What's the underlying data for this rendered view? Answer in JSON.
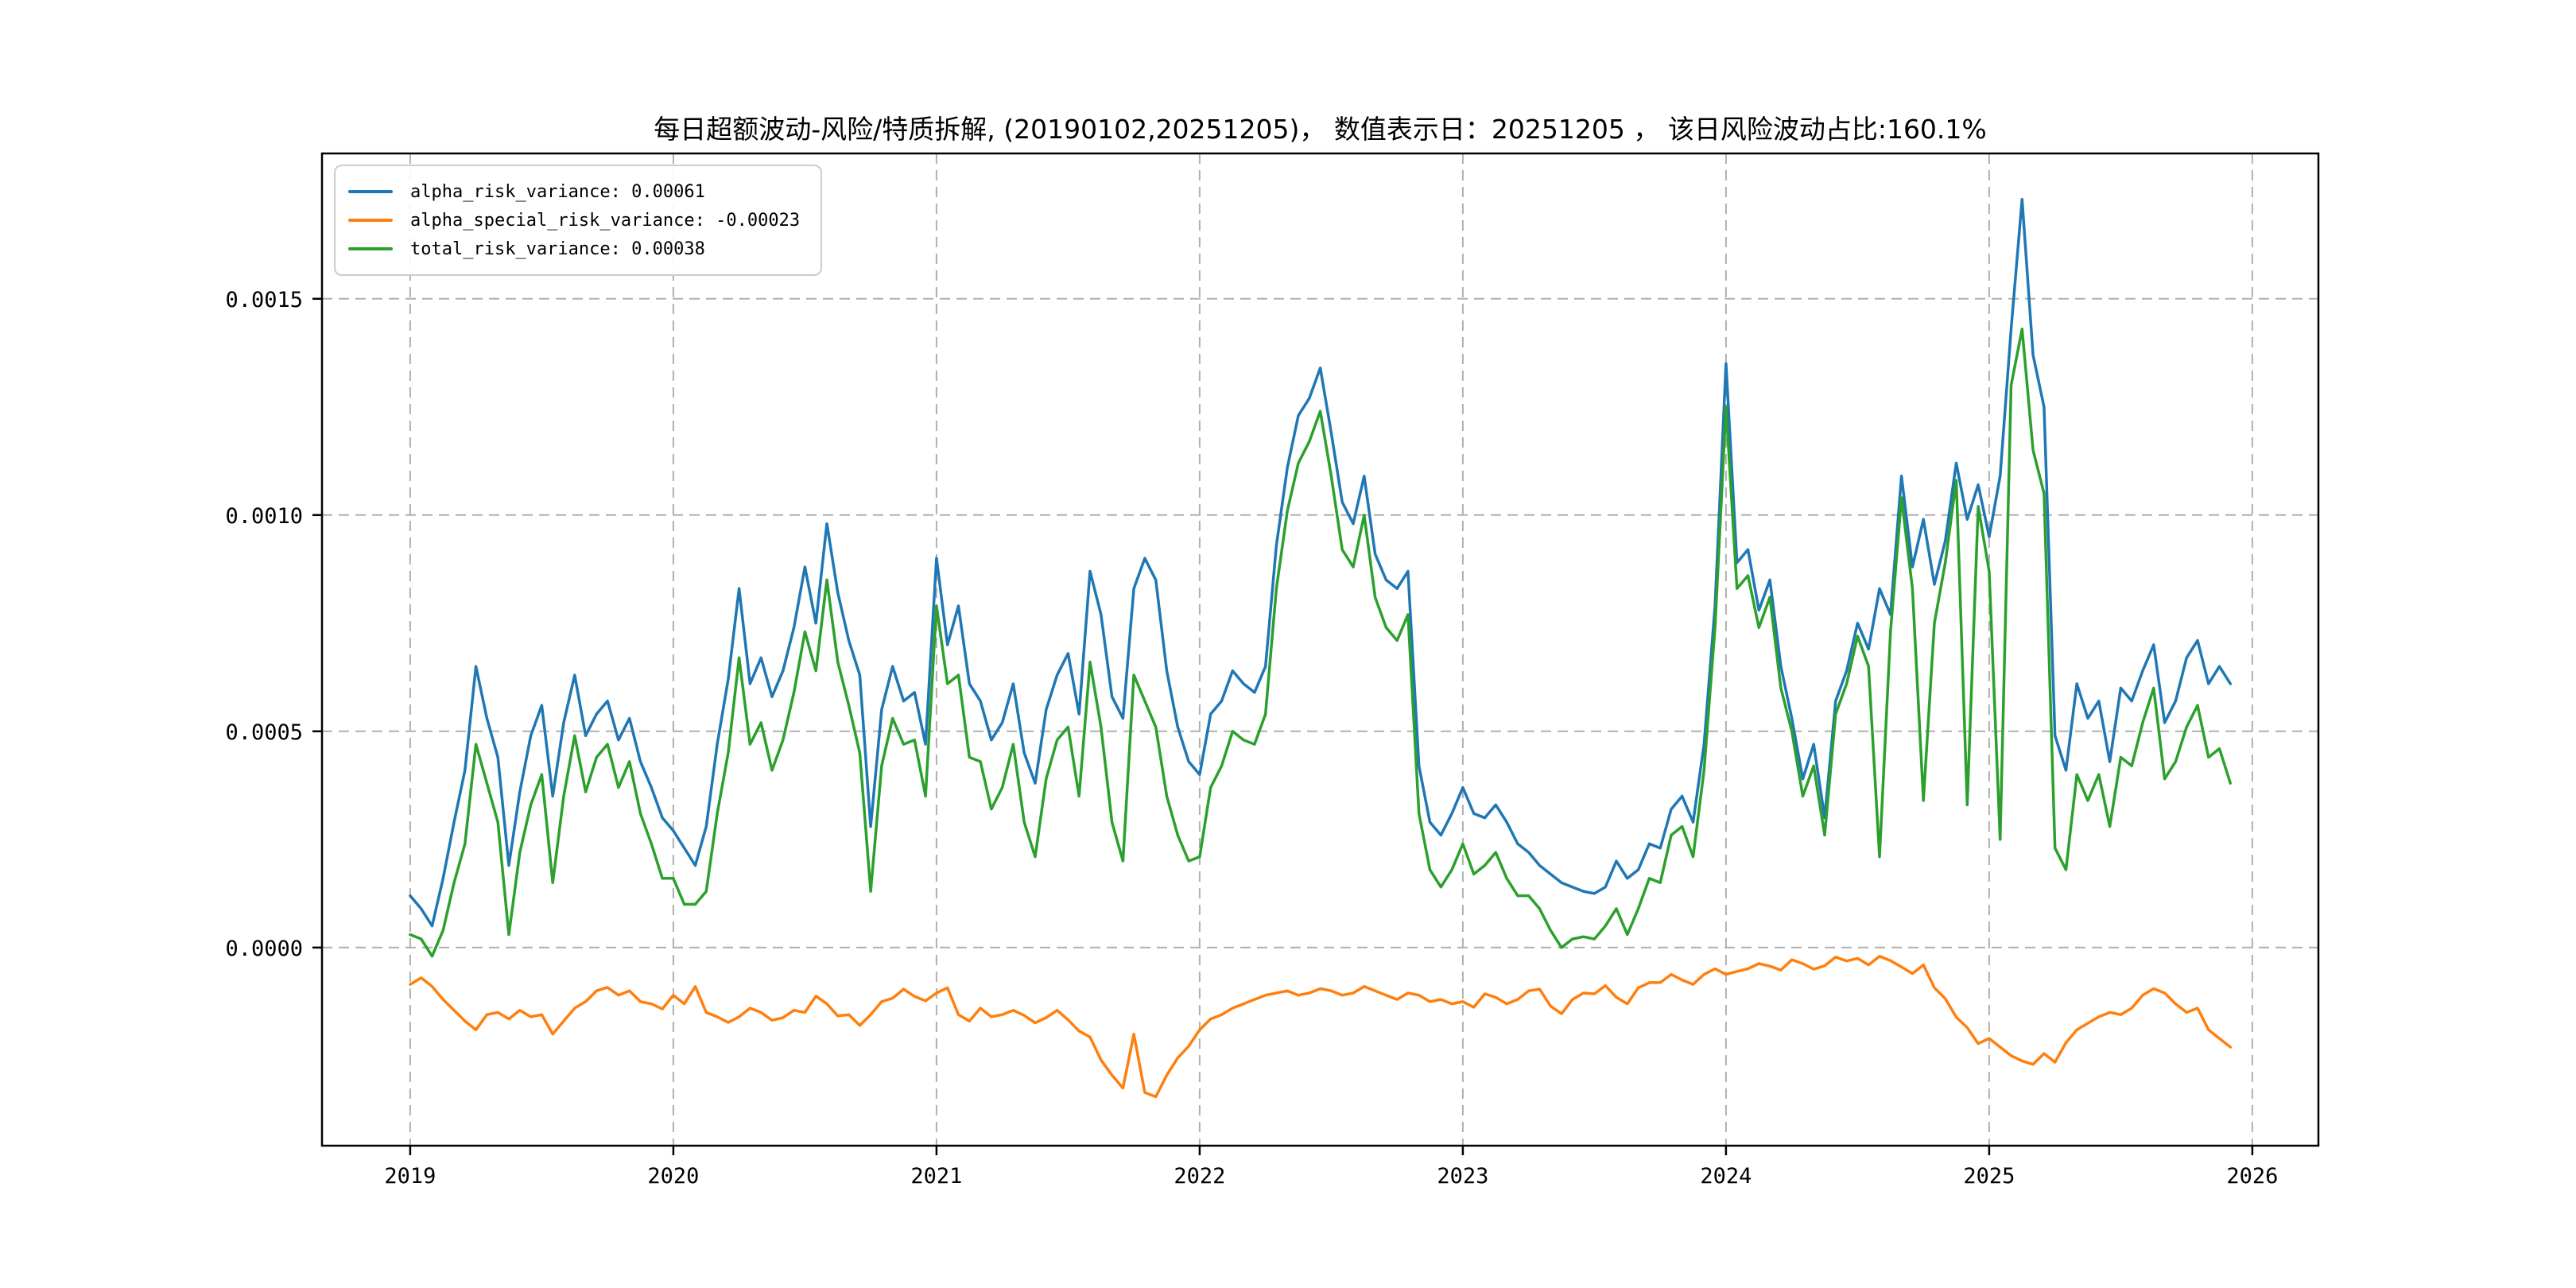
{
  "title": "每日超额波动-风险/特质拆解, (20190102,20251205)， 数值表示日：20251205 ， 该日风险波动占比:160.1%",
  "legend": {
    "items": [
      {
        "label": "alpha_risk_variance: 0.00061",
        "color": "#1f77b4"
      },
      {
        "label": "alpha_special_risk_variance: -0.00023",
        "color": "#ff7f0e"
      },
      {
        "label": "total_risk_variance: 0.00038",
        "color": "#2ca02c"
      }
    ]
  },
  "chart_data": {
    "type": "line",
    "title": "每日超额波动-风险/特质拆解, (20190102,20251205)， 数值表示日：20251205 ， 该日风险波动占比:160.1%",
    "date_range": [
      "20190102",
      "20251205"
    ],
    "value_date": "20251205",
    "risk_ratio_pct": 160.1,
    "legend_position": "upper-left",
    "grid": {
      "visible": true,
      "style": "dashed",
      "color": "#b0b0b0"
    },
    "x_axis": {
      "ticks": [
        2019,
        2020,
        2021,
        2022,
        2023,
        2024,
        2025,
        2026
      ],
      "tick_labels": [
        "2019",
        "2020",
        "2021",
        "2022",
        "2023",
        "2024",
        "2025",
        "2026"
      ],
      "lim": [
        2018.665,
        2026.251
      ]
    },
    "y_axis": {
      "ticks": [
        0.0,
        0.0005,
        0.001,
        0.0015
      ],
      "tick_labels": [
        "0.0000",
        "0.0005",
        "0.0010",
        "0.0015"
      ],
      "lim": [
        -0.000458,
        0.001836
      ]
    },
    "x_start": 2019.0,
    "x_step": 0.0416667,
    "value_unit": 0.0001,
    "series": [
      {
        "name": "alpha_risk_variance",
        "color": "#1f77b4",
        "last_value": 0.00061,
        "values": [
          1.2,
          0.9,
          0.5,
          1.6,
          2.9,
          4.1,
          6.5,
          5.3,
          4.4,
          1.9,
          3.6,
          4.9,
          5.6,
          3.5,
          5.2,
          6.3,
          4.9,
          5.4,
          5.7,
          4.8,
          5.3,
          4.3,
          3.7,
          3.0,
          2.7,
          2.3,
          1.9,
          2.8,
          4.7,
          6.2,
          8.3,
          6.1,
          6.7,
          5.8,
          6.4,
          7.4,
          8.8,
          7.5,
          9.8,
          8.2,
          7.1,
          6.3,
          2.8,
          5.5,
          6.5,
          5.7,
          5.9,
          4.7,
          9.0,
          7.0,
          7.9,
          6.1,
          5.7,
          4.8,
          5.2,
          6.1,
          4.5,
          3.8,
          5.5,
          6.3,
          6.8,
          5.4,
          8.7,
          7.7,
          5.8,
          5.3,
          8.3,
          9.0,
          8.5,
          6.4,
          5.1,
          4.3,
          4.0,
          5.4,
          5.7,
          6.4,
          6.1,
          5.9,
          6.5,
          9.3,
          11.1,
          12.3,
          12.7,
          13.4,
          11.9,
          10.3,
          9.8,
          10.9,
          9.1,
          8.5,
          8.3,
          8.7,
          4.2,
          2.9,
          2.6,
          3.1,
          3.7,
          3.1,
          3.0,
          3.3,
          2.9,
          2.4,
          2.2,
          1.9,
          1.7,
          1.5,
          1.4,
          1.3,
          1.25,
          1.4,
          2.0,
          1.6,
          1.8,
          2.4,
          2.3,
          3.2,
          3.5,
          2.9,
          4.7,
          7.9,
          13.5,
          8.9,
          9.2,
          7.8,
          8.5,
          6.5,
          5.3,
          3.9,
          4.7,
          3.0,
          5.7,
          6.4,
          7.5,
          6.9,
          8.3,
          7.7,
          10.9,
          8.8,
          9.9,
          8.4,
          9.4,
          11.2,
          9.9,
          10.7,
          9.5,
          10.9,
          14.3,
          17.3,
          13.7,
          12.5,
          4.9,
          4.1,
          6.1,
          5.3,
          5.7,
          4.3,
          6.0,
          5.7,
          6.4,
          7.0,
          5.2,
          5.7,
          6.7,
          7.1,
          6.1,
          6.5,
          6.1
        ]
      },
      {
        "name": "alpha_special_risk_variance",
        "color": "#ff7f0e",
        "last_value": -0.00023,
        "values": [
          -0.85,
          -0.7,
          -0.9,
          -1.2,
          -1.45,
          -1.7,
          -1.9,
          -1.55,
          -1.5,
          -1.65,
          -1.45,
          -1.6,
          -1.55,
          -2.0,
          -1.7,
          -1.4,
          -1.25,
          -1.0,
          -0.92,
          -1.1,
          -1.0,
          -1.25,
          -1.3,
          -1.42,
          -1.1,
          -1.3,
          -0.9,
          -1.5,
          -1.6,
          -1.73,
          -1.6,
          -1.4,
          -1.5,
          -1.68,
          -1.62,
          -1.45,
          -1.5,
          -1.12,
          -1.3,
          -1.58,
          -1.55,
          -1.8,
          -1.55,
          -1.25,
          -1.17,
          -0.96,
          -1.13,
          -1.23,
          -1.05,
          -0.93,
          -1.55,
          -1.7,
          -1.4,
          -1.6,
          -1.55,
          -1.45,
          -1.57,
          -1.74,
          -1.62,
          -1.45,
          -1.67,
          -1.93,
          -2.07,
          -2.6,
          -2.95,
          -3.25,
          -2.0,
          -3.35,
          -3.45,
          -2.95,
          -2.55,
          -2.28,
          -1.9,
          -1.65,
          -1.55,
          -1.4,
          -1.3,
          -1.2,
          -1.1,
          -1.05,
          -1.0,
          -1.1,
          -1.05,
          -0.95,
          -1.0,
          -1.1,
          -1.05,
          -0.9,
          -1.0,
          -1.1,
          -1.2,
          -1.05,
          -1.1,
          -1.25,
          -1.2,
          -1.3,
          -1.25,
          -1.38,
          -1.07,
          -1.15,
          -1.3,
          -1.2,
          -1.0,
          -0.96,
          -1.35,
          -1.53,
          -1.2,
          -1.05,
          -1.07,
          -0.88,
          -1.15,
          -1.3,
          -0.93,
          -0.81,
          -0.81,
          -0.62,
          -0.75,
          -0.85,
          -0.62,
          -0.49,
          -0.62,
          -0.55,
          -0.49,
          -0.37,
          -0.43,
          -0.52,
          -0.28,
          -0.37,
          -0.5,
          -0.42,
          -0.22,
          -0.31,
          -0.25,
          -0.4,
          -0.2,
          -0.3,
          -0.45,
          -0.6,
          -0.4,
          -0.93,
          -1.18,
          -1.61,
          -1.85,
          -2.22,
          -2.1,
          -2.3,
          -2.5,
          -2.62,
          -2.7,
          -2.45,
          -2.65,
          -2.2,
          -1.9,
          -1.75,
          -1.6,
          -1.5,
          -1.55,
          -1.4,
          -1.1,
          -0.95,
          -1.05,
          -1.3,
          -1.5,
          -1.4,
          -1.9,
          -2.1,
          -2.3
        ]
      },
      {
        "name": "total_risk_variance",
        "color": "#2ca02c",
        "last_value": 0.00038,
        "values": [
          0.3,
          0.2,
          -0.2,
          0.4,
          1.5,
          2.4,
          4.7,
          3.8,
          2.9,
          0.3,
          2.2,
          3.3,
          4.0,
          1.5,
          3.5,
          4.9,
          3.6,
          4.4,
          4.7,
          3.7,
          4.3,
          3.1,
          2.4,
          1.6,
          1.6,
          1.0,
          1.0,
          1.3,
          3.1,
          4.5,
          6.7,
          4.7,
          5.2,
          4.1,
          4.8,
          5.9,
          7.3,
          6.4,
          8.5,
          6.6,
          5.6,
          4.5,
          1.3,
          4.2,
          5.3,
          4.7,
          4.8,
          3.5,
          7.9,
          6.1,
          6.3,
          4.4,
          4.3,
          3.2,
          3.7,
          4.7,
          2.9,
          2.1,
          3.9,
          4.8,
          5.1,
          3.5,
          6.6,
          5.1,
          2.9,
          2.0,
          6.3,
          5.7,
          5.1,
          3.5,
          2.6,
          2.0,
          2.1,
          3.7,
          4.2,
          5.0,
          4.8,
          4.7,
          5.4,
          8.3,
          10.1,
          11.2,
          11.7,
          12.4,
          10.9,
          9.2,
          8.8,
          10.0,
          8.1,
          7.4,
          7.1,
          7.7,
          3.1,
          1.8,
          1.4,
          1.8,
          2.4,
          1.7,
          1.9,
          2.2,
          1.6,
          1.2,
          1.2,
          0.9,
          0.4,
          0.0,
          0.2,
          0.25,
          0.2,
          0.5,
          0.9,
          0.3,
          0.9,
          1.6,
          1.5,
          2.6,
          2.8,
          2.1,
          4.1,
          7.4,
          12.5,
          8.3,
          8.6,
          7.4,
          8.1,
          6.0,
          5.0,
          3.5,
          4.2,
          2.6,
          5.4,
          6.1,
          7.2,
          6.5,
          2.1,
          7.3,
          10.4,
          8.3,
          3.4,
          7.5,
          8.9,
          10.8,
          3.3,
          10.2,
          8.7,
          2.5,
          13.0,
          14.3,
          11.5,
          10.5,
          2.3,
          1.8,
          4.0,
          3.4,
          4.0,
          2.8,
          4.4,
          4.2,
          5.2,
          6.0,
          3.9,
          4.3,
          5.1,
          5.6,
          4.4,
          4.6,
          3.8
        ]
      }
    ]
  }
}
